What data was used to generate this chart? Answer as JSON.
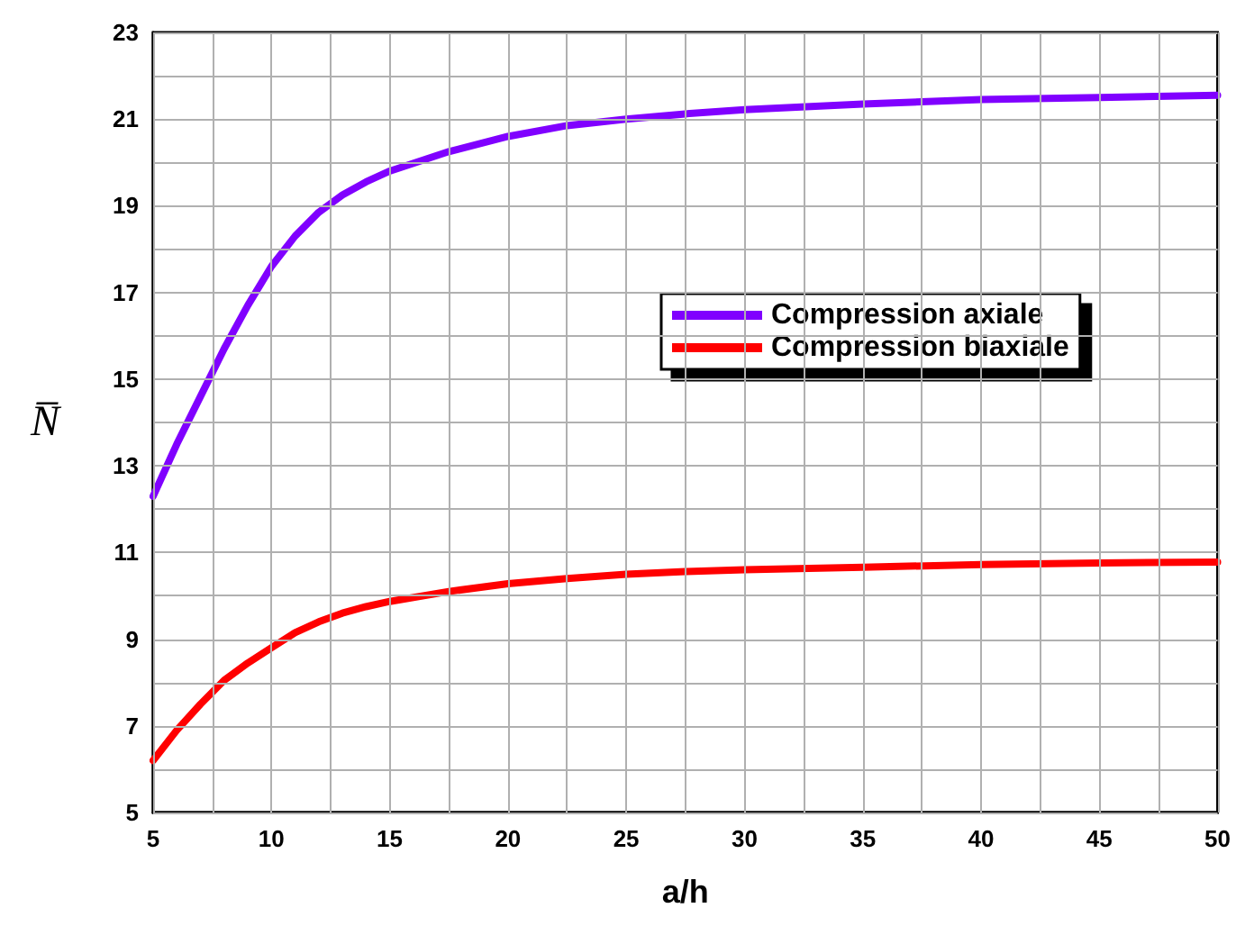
{
  "chart_data": {
    "type": "line",
    "xlabel": "a/h",
    "ylabel": "N̅",
    "x": [
      5,
      6,
      7,
      8,
      9,
      10,
      11,
      12,
      13,
      14,
      15,
      17.5,
      20,
      22.5,
      25,
      27.5,
      30,
      35,
      40,
      45,
      50
    ],
    "series": [
      {
        "name": "Compression axiale",
        "color": "#8000ff",
        "values": [
          12.3,
          13.5,
          14.6,
          15.7,
          16.7,
          17.6,
          18.3,
          18.85,
          19.25,
          19.55,
          19.8,
          20.25,
          20.6,
          20.85,
          21.0,
          21.12,
          21.22,
          21.35,
          21.45,
          21.5,
          21.55
        ]
      },
      {
        "name": "Compression biaxiale",
        "color": "#ff0000",
        "values": [
          6.2,
          6.9,
          7.5,
          8.05,
          8.45,
          8.8,
          9.15,
          9.4,
          9.6,
          9.75,
          9.87,
          10.1,
          10.28,
          10.4,
          10.5,
          10.56,
          10.6,
          10.66,
          10.72,
          10.76,
          10.78
        ]
      }
    ],
    "xlim": [
      5,
      50
    ],
    "xticks": [
      5,
      10,
      15,
      20,
      25,
      30,
      35,
      40,
      45,
      50
    ],
    "ylim": [
      5,
      23
    ],
    "yticks": [
      5,
      7,
      9,
      11,
      13,
      15,
      17,
      19,
      21,
      23
    ],
    "grid": true,
    "legend": "right",
    "line_style": "solid",
    "marker": "none"
  }
}
